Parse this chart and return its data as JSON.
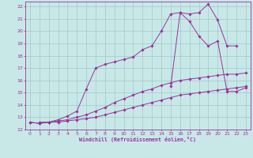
{
  "xlabel": "Windchill (Refroidissement éolien,°C)",
  "xlim": [
    -0.5,
    23.5
  ],
  "ylim": [
    12,
    22.4
  ],
  "xticks": [
    0,
    1,
    2,
    3,
    4,
    5,
    6,
    7,
    8,
    9,
    10,
    11,
    12,
    13,
    14,
    15,
    16,
    17,
    18,
    19,
    20,
    21,
    22,
    23
  ],
  "yticks": [
    12,
    13,
    14,
    15,
    16,
    17,
    18,
    19,
    20,
    21,
    22
  ],
  "bg_color": "#c8e8e8",
  "line_color": "#993399",
  "grid_color": "#a0c8c8",
  "line1_x": [
    0,
    1,
    2,
    3,
    4,
    5,
    6,
    7,
    8,
    9,
    10,
    11,
    12,
    13,
    14,
    15,
    16,
    17,
    18,
    19,
    20,
    21,
    22,
    23
  ],
  "line1_y": [
    12.6,
    12.5,
    12.6,
    12.6,
    12.7,
    12.8,
    12.9,
    13.0,
    13.2,
    13.4,
    13.6,
    13.8,
    14.0,
    14.2,
    14.4,
    14.6,
    14.8,
    14.9,
    15.0,
    15.1,
    15.2,
    15.3,
    15.4,
    15.5
  ],
  "line2_x": [
    0,
    1,
    2,
    3,
    4,
    5,
    6,
    7,
    8,
    9,
    10,
    11,
    12,
    13,
    14,
    15,
    16,
    17,
    18,
    19,
    20,
    21,
    22,
    23
  ],
  "line2_y": [
    12.6,
    12.5,
    12.6,
    12.7,
    12.8,
    13.0,
    13.2,
    13.5,
    13.8,
    14.2,
    14.5,
    14.8,
    15.1,
    15.3,
    15.6,
    15.8,
    16.0,
    16.1,
    16.2,
    16.3,
    16.4,
    16.5,
    16.5,
    16.6
  ],
  "line3_x": [
    1,
    2,
    3,
    4,
    5,
    6,
    7,
    8,
    9,
    10,
    11,
    12,
    13,
    14,
    15,
    16,
    17,
    18,
    19,
    20,
    21,
    22
  ],
  "line3_y": [
    12.6,
    12.6,
    12.8,
    13.1,
    13.5,
    15.3,
    17.0,
    17.3,
    17.5,
    17.7,
    17.9,
    18.5,
    18.8,
    20.0,
    21.4,
    21.5,
    21.4,
    21.5,
    22.2,
    20.9,
    18.8,
    18.8
  ],
  "line4_x": [
    15,
    16,
    17,
    18,
    19,
    20,
    21,
    22,
    23
  ],
  "line4_y": [
    15.5,
    21.5,
    20.8,
    19.6,
    18.8,
    19.2,
    15.1,
    15.1,
    15.4
  ]
}
